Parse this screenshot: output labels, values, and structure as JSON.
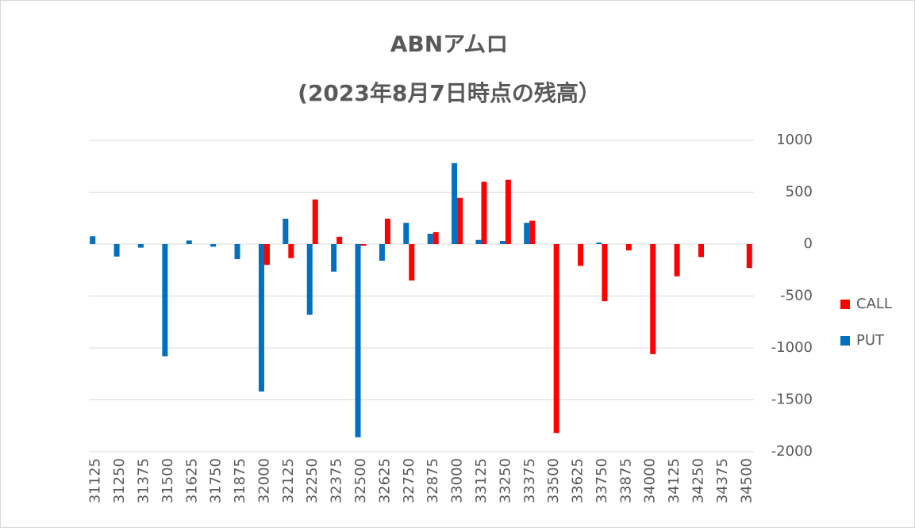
{
  "chart_data": {
    "type": "bar",
    "title": "ABNアムロ",
    "subtitle": "(2023年8月7日時点の残高）",
    "categories": [
      "31125",
      "31250",
      "31375",
      "31500",
      "31625",
      "31750",
      "31875",
      "32000",
      "32125",
      "32250",
      "32375",
      "32500",
      "32625",
      "32750",
      "32875",
      "33000",
      "33125",
      "33250",
      "33375",
      "33500",
      "33625",
      "33750",
      "33875",
      "34000",
      "34125",
      "34250",
      "34375",
      "34500"
    ],
    "series": [
      {
        "name": "PUT",
        "color": "#0070c0",
        "values": [
          75,
          -120,
          -35,
          -1080,
          35,
          -25,
          -145,
          -1420,
          245,
          -680,
          -265,
          -1860,
          -160,
          205,
          100,
          780,
          40,
          30,
          205,
          null,
          null,
          15,
          null,
          null,
          null,
          null,
          null,
          null
        ]
      },
      {
        "name": "CALL",
        "color": "#ff0000",
        "values": [
          null,
          null,
          null,
          null,
          null,
          null,
          null,
          -200,
          -135,
          430,
          70,
          -15,
          245,
          -350,
          115,
          445,
          600,
          620,
          225,
          -1820,
          -210,
          -550,
          -60,
          -1060,
          -310,
          -125,
          null,
          -230
        ]
      }
    ],
    "ylim": [
      -2000,
      1000
    ],
    "yticks": [
      -2000,
      -1500,
      -1000,
      -500,
      0,
      500,
      1000
    ],
    "grid": true,
    "legend": "right"
  }
}
